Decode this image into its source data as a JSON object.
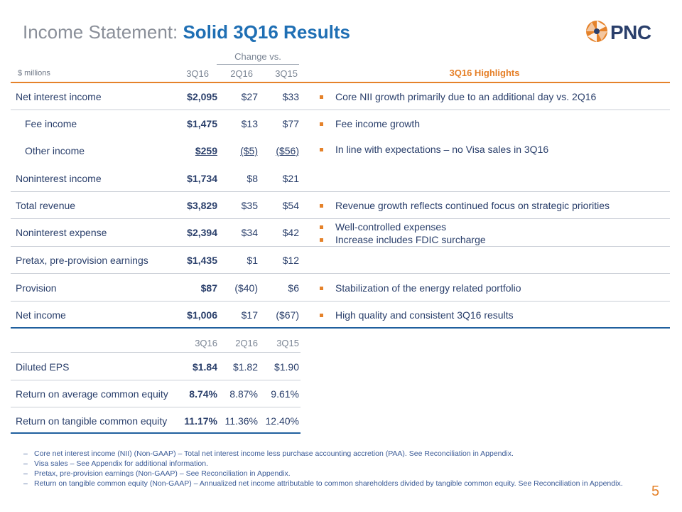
{
  "title": {
    "plain": "Income Statement: ",
    "bold": "Solid 3Q16 Results"
  },
  "logo": {
    "text": "PNC",
    "icon": "pnc-pinwheel-icon"
  },
  "header": {
    "units": "$ millions",
    "change_vs": "Change vs.",
    "col1": "3Q16",
    "col2": "2Q16",
    "col3": "3Q15",
    "highlights": "3Q16 Highlights"
  },
  "rows": [
    {
      "label": "Net interest income",
      "c1": "$2,095",
      "c2": "$27",
      "c3": "$33"
    },
    {
      "label": "Fee income",
      "c1": "$1,475",
      "c2": "$13",
      "c3": "$77"
    },
    {
      "label": "Other income",
      "c1": "$259",
      "c2": "($5)",
      "c3": "($56)"
    },
    {
      "label": "Noninterest income",
      "c1": "$1,734",
      "c2": "$8",
      "c3": "$21"
    },
    {
      "label": "Total revenue",
      "c1": "$3,829",
      "c2": "$35",
      "c3": "$54"
    },
    {
      "label": "Noninterest expense",
      "c1": "$2,394",
      "c2": "$34",
      "c3": "$42"
    },
    {
      "label": "Pretax, pre-provision earnings",
      "c1": "$1,435",
      "c2": "$1",
      "c3": "$12"
    },
    {
      "label": "Provision",
      "c1": "$87",
      "c2": "($40)",
      "c3": "$6"
    },
    {
      "label": "Net income",
      "c1": "$1,006",
      "c2": "$17",
      "c3": "($67)"
    }
  ],
  "highlights": [
    "Core NII growth primarily due to an additional day vs. 2Q16",
    "Fee income growth",
    "In line with expectations – no Visa sales in 3Q16",
    "Revenue growth reflects continued focus on strategic priorities",
    "Well-controlled expenses",
    "Increase includes FDIC surcharge",
    "Stabilization of the energy related portfolio",
    "High quality and consistent 3Q16 results"
  ],
  "ratios_header": {
    "col1": "3Q16",
    "col2": "2Q16",
    "col3": "3Q15"
  },
  "ratios": [
    {
      "label": "Diluted EPS",
      "c1": "$1.84",
      "c2": "$1.82",
      "c3": "$1.90"
    },
    {
      "label": "Return on average common equity",
      "c1": "8.74%",
      "c2": "8.87%",
      "c3": "9.61%"
    },
    {
      "label": "Return on tangible common equity",
      "c1": "11.17%",
      "c2": "11.36%",
      "c3": "12.40%"
    }
  ],
  "footnotes": {
    "dash": "–",
    "f1": "Core net interest income (NII) (Non-GAAP) – Total net interest income less purchase accounting accretion (PAA). See Reconciliation in Appendix.",
    "f2": "Visa sales – See Appendix for additional information.",
    "f3": "Pretax, pre-provision earnings (Non-GAAP) – See Reconciliation in Appendix.",
    "f4": "Return on tangible common equity (Non-GAAP) – Annualized net income attributable to common shareholders divided by tangible common equity.  See Reconciliation in Appendix."
  },
  "page_number": "5",
  "colors": {
    "accent_orange": "#e5822a",
    "title_blue": "#1f6fb4",
    "navy": "#2a3f6b"
  }
}
